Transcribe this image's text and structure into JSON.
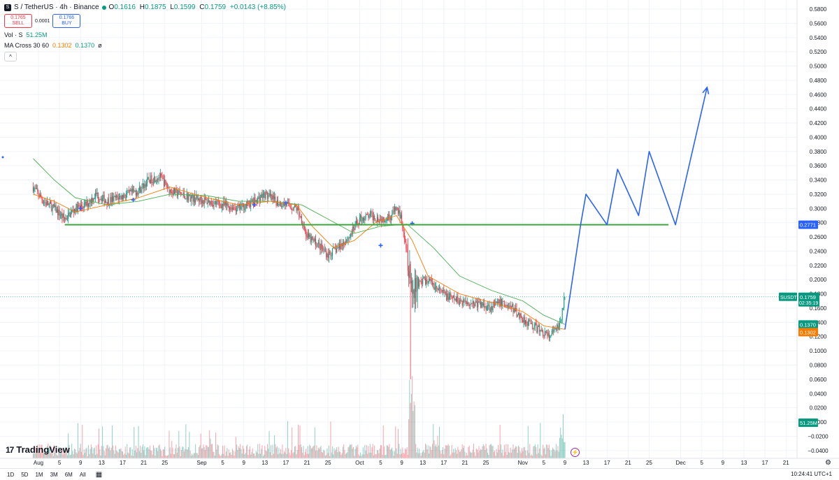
{
  "header": {
    "symbol_icon": "S",
    "title": "S / TetherUS · 4h · Binance",
    "ohlc": {
      "o_label": "O",
      "o": "0.1616",
      "h_label": "H",
      "h": "0.1875",
      "l_label": "L",
      "l": "0.1599",
      "c_label": "C",
      "c": "0.1759",
      "change": "+0.0143 (+8.85%)"
    },
    "sell_price": "0.1765",
    "sell_label": "SELL",
    "spread": "0.0001",
    "buy_price": "0.1766",
    "buy_label": "BUY",
    "volume_label": "Vol · S",
    "volume_value": "51.25M",
    "ma_label": "MA Cross 30 60",
    "ma_fast": "0.1302",
    "ma_slow": "0.1370",
    "ma_extra": "ø",
    "collapse_icon": "^"
  },
  "logo_text": "TradingView",
  "logo_icon": "17",
  "colors": {
    "up": "#089981",
    "down": "#f23645",
    "ma_fast": "#f57c00",
    "ma_slow": "#4caf50",
    "support": "#3ca53c",
    "projection": "#2962ff",
    "price_line": "#089981"
  },
  "price_axis": {
    "ticks": [
      "0.5800",
      "0.5600",
      "0.5400",
      "0.5200",
      "0.5000",
      "0.4800",
      "0.4600",
      "0.4400",
      "0.4200",
      "0.4000",
      "0.3800",
      "0.3600",
      "0.3400",
      "0.3200",
      "0.3000",
      "0.2800",
      "0.2600",
      "0.2400",
      "0.2200",
      "0.2000",
      "0.1800",
      "0.1600",
      "0.1400",
      "0.1200",
      "0.1000",
      "0.0800",
      "0.0600",
      "0.0400",
      "0.0200",
      "0.0000",
      "−0.0200",
      "−0.0400"
    ],
    "labels": {
      "support": "0.2771",
      "current_symbol": "SUSDT",
      "current": "0.1759",
      "countdown": "02:35:19",
      "ma_slow": "0.1370",
      "ma_fast": "0.1302",
      "volume": "51.25M"
    }
  },
  "time_axis": {
    "ticks": [
      "Aug",
      "5",
      "9",
      "13",
      "17",
      "21",
      "25",
      "Sep",
      "5",
      "9",
      "13",
      "17",
      "21",
      "25",
      "Oct",
      "5",
      "9",
      "13",
      "17",
      "21",
      "25",
      "Nov",
      "5",
      "9",
      "13",
      "17",
      "21",
      "25",
      "Dec",
      "5",
      "9",
      "13",
      "17",
      "21"
    ]
  },
  "bottom_bar": {
    "ranges": [
      "1D",
      "5D",
      "1M",
      "3M",
      "6M",
      "All"
    ],
    "calendar_icon": "calendar-icon",
    "clock": "10:24:41 UTC+1"
  },
  "chart_data": {
    "type": "candlestick",
    "symbol": "S / TetherUS",
    "interval": "4h",
    "ylim": [
      -0.04,
      0.59
    ],
    "support_level": 0.2771,
    "current_price": 0.1759,
    "close_path": [
      [
        "Jul 31",
        0.33
      ],
      [
        "Aug 2",
        0.31
      ],
      [
        "Aug 4",
        0.3
      ],
      [
        "Aug 6",
        0.285
      ],
      [
        "Aug 8",
        0.3
      ],
      [
        "Aug 10",
        0.305
      ],
      [
        "Aug 12",
        0.32
      ],
      [
        "Aug 14",
        0.31
      ],
      [
        "Aug 16",
        0.315
      ],
      [
        "Aug 18",
        0.32
      ],
      [
        "Aug 20",
        0.325
      ],
      [
        "Aug 22",
        0.34
      ],
      [
        "Aug 24",
        0.345
      ],
      [
        "Aug 26",
        0.325
      ],
      [
        "Aug 28",
        0.32
      ],
      [
        "Aug 30",
        0.315
      ],
      [
        "Sep 2",
        0.31
      ],
      [
        "Sep 5",
        0.305
      ],
      [
        "Sep 8",
        0.3
      ],
      [
        "Sep 11",
        0.31
      ],
      [
        "Sep 13",
        0.32
      ],
      [
        "Sep 15",
        0.31
      ],
      [
        "Sep 17",
        0.305
      ],
      [
        "Sep 19",
        0.3
      ],
      [
        "Sep 20",
        0.285
      ],
      [
        "Sep 21",
        0.26
      ],
      [
        "Sep 23",
        0.25
      ],
      [
        "Sep 25",
        0.235
      ],
      [
        "Sep 27",
        0.245
      ],
      [
        "Sep 29",
        0.26
      ],
      [
        "Oct 1",
        0.285
      ],
      [
        "Oct 3",
        0.29
      ],
      [
        "Oct 5",
        0.285
      ],
      [
        "Oct 7",
        0.29
      ],
      [
        "Oct 8",
        0.3
      ],
      [
        "Oct 9",
        0.285
      ],
      [
        "Oct 10",
        0.24
      ],
      [
        "Oct 11",
        0.19
      ],
      [
        "Oct 12",
        0.195
      ],
      [
        "Oct 14",
        0.2
      ],
      [
        "Oct 16",
        0.185
      ],
      [
        "Oct 18",
        0.175
      ],
      [
        "Oct 20",
        0.17
      ],
      [
        "Oct 22",
        0.168
      ],
      [
        "Oct 24",
        0.165
      ],
      [
        "Oct 26",
        0.162
      ],
      [
        "Oct 28",
        0.168
      ],
      [
        "Oct 30",
        0.16
      ],
      [
        "Nov 1",
        0.145
      ],
      [
        "Nov 3",
        0.135
      ],
      [
        "Nov 5",
        0.125
      ],
      [
        "Nov 6",
        0.12
      ],
      [
        "Nov 7",
        0.128
      ],
      [
        "Nov 8",
        0.135
      ],
      [
        "Nov 9",
        0.176
      ]
    ],
    "ma30": [
      [
        "Jul 31",
        0.32
      ],
      [
        "Aug 4",
        0.31
      ],
      [
        "Aug 8",
        0.295
      ],
      [
        "Aug 14",
        0.305
      ],
      [
        "Aug 20",
        0.315
      ],
      [
        "Aug 26",
        0.33
      ],
      [
        "Sep 2",
        0.315
      ],
      [
        "Sep 8",
        0.305
      ],
      [
        "Sep 14",
        0.31
      ],
      [
        "Sep 19",
        0.305
      ],
      [
        "Sep 22",
        0.275
      ],
      [
        "Sep 26",
        0.245
      ],
      [
        "Sep 30",
        0.255
      ],
      [
        "Oct 4",
        0.28
      ],
      [
        "Oct 8",
        0.29
      ],
      [
        "Oct 11",
        0.255
      ],
      [
        "Oct 14",
        0.205
      ],
      [
        "Oct 20",
        0.18
      ],
      [
        "Oct 26",
        0.168
      ],
      [
        "Nov 1",
        0.155
      ],
      [
        "Nov 5",
        0.135
      ],
      [
        "Nov 9",
        0.1302
      ]
    ],
    "ma60": [
      [
        "Jul 31",
        0.37
      ],
      [
        "Aug 4",
        0.34
      ],
      [
        "Aug 8",
        0.315
      ],
      [
        "Aug 14",
        0.305
      ],
      [
        "Aug 20",
        0.31
      ],
      [
        "Aug 26",
        0.32
      ],
      [
        "Sep 2",
        0.318
      ],
      [
        "Sep 8",
        0.31
      ],
      [
        "Sep 14",
        0.31
      ],
      [
        "Sep 20",
        0.305
      ],
      [
        "Sep 25",
        0.285
      ],
      [
        "Sep 30",
        0.265
      ],
      [
        "Oct 5",
        0.275
      ],
      [
        "Oct 10",
        0.278
      ],
      [
        "Oct 15",
        0.245
      ],
      [
        "Oct 20",
        0.205
      ],
      [
        "Oct 26",
        0.185
      ],
      [
        "Nov 1",
        0.17
      ],
      [
        "Nov 5",
        0.15
      ],
      [
        "Nov 9",
        0.137
      ]
    ],
    "projection": [
      [
        "Nov 9",
        0.13
      ],
      [
        "Nov 12",
        0.278
      ],
      [
        "Nov 13",
        0.32
      ],
      [
        "Nov 17",
        0.277
      ],
      [
        "Nov 19",
        0.355
      ],
      [
        "Nov 23",
        0.29
      ],
      [
        "Nov 25",
        0.38
      ],
      [
        "Nov 30",
        0.277
      ],
      [
        "Dec 6",
        0.47
      ]
    ],
    "volume_spike": [
      "Oct 10",
      "Oct 11"
    ]
  }
}
